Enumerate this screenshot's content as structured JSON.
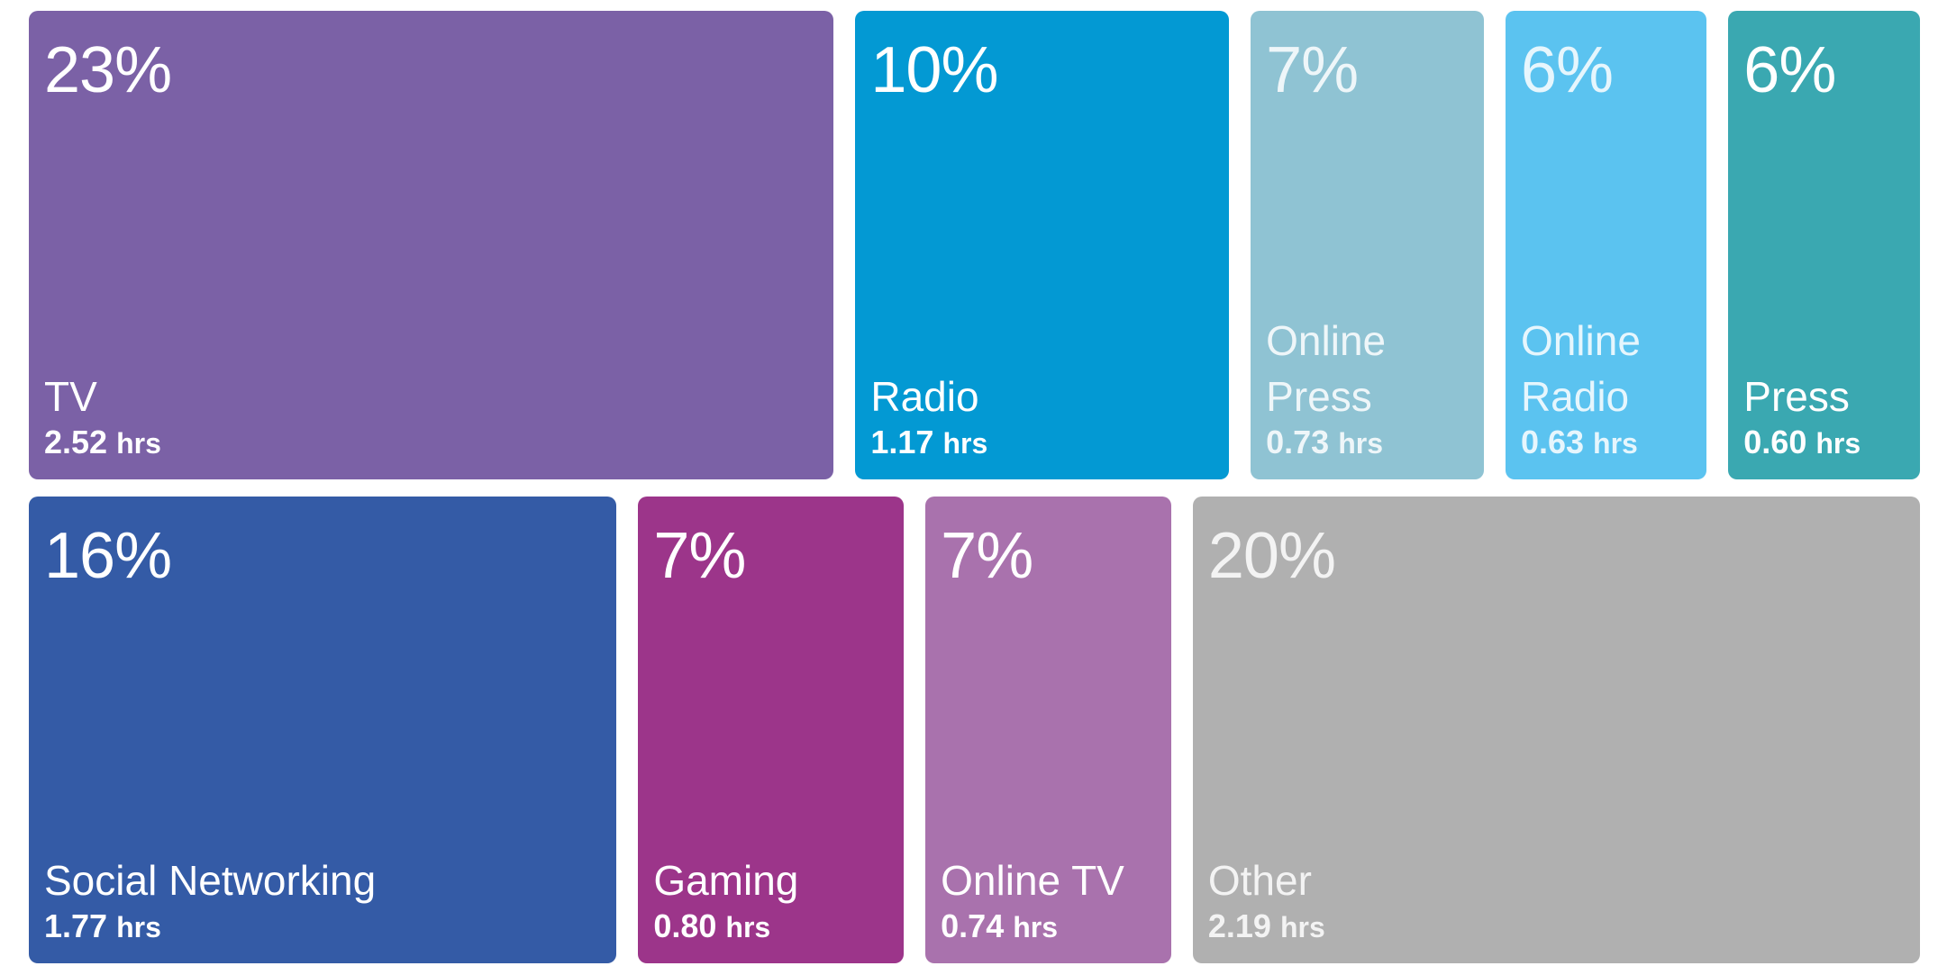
{
  "chart_data": {
    "type": "treemap",
    "categories": [
      "TV",
      "Radio",
      "Online Press",
      "Online Radio",
      "Press",
      "Social Networking",
      "Gaming",
      "Online TV",
      "Other"
    ],
    "values": [
      23,
      10,
      7,
      6,
      6,
      16,
      7,
      7,
      20
    ],
    "value_labels": [
      "23%",
      "10%",
      "7%",
      "6%",
      "6%",
      "16%",
      "7%",
      "7%",
      "20%"
    ],
    "hours": [
      2.52,
      1.17,
      0.73,
      0.63,
      0.6,
      1.77,
      0.8,
      0.74,
      2.19
    ],
    "hours_labels": [
      "2.52",
      "1.17",
      "0.73",
      "0.63",
      "0.60",
      "1.77",
      "0.80",
      "0.74",
      "2.19"
    ],
    "unit": "hrs",
    "colors": [
      "#7b61a6",
      "#0399d3",
      "#8fc3d3",
      "#5bc3f0",
      "#3aa8b1",
      "#345ba6",
      "#9c358a",
      "#a972ad",
      "#b0b0b0"
    ]
  }
}
